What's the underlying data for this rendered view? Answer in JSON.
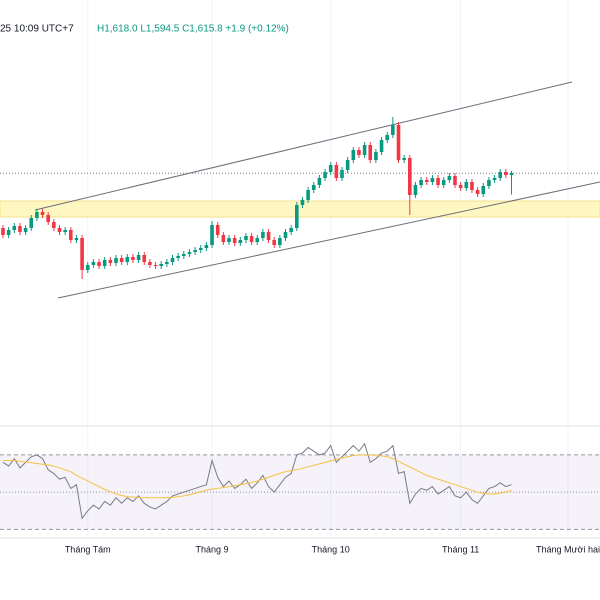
{
  "chart_data": {
    "type": "candlestick",
    "header": {
      "time": "25 10:09 UTC+7",
      "ohlc": "H1,618.0 L1,594.5 C1,615.8 +1.9 (+0.12%)"
    },
    "categories": [
      null,
      null,
      null,
      null,
      null,
      null,
      null,
      null,
      null,
      null,
      null,
      null,
      null,
      null,
      null,
      "Tháng Tám",
      null,
      null,
      null,
      null,
      null,
      null,
      null,
      null,
      null,
      null,
      null,
      null,
      null,
      null,
      null,
      null,
      null,
      null,
      null,
      null,
      null,
      "Tháng 9",
      null,
      null,
      null,
      null,
      null,
      null,
      null,
      null,
      null,
      null,
      null,
      null,
      null,
      null,
      null,
      null,
      null,
      null,
      null,
      null,
      "Tháng 10",
      null,
      null,
      null,
      null,
      null,
      null,
      null,
      null,
      null,
      null,
      null,
      null,
      null,
      null,
      null,
      null,
      null,
      null,
      null,
      null,
      null,
      null,
      "Tháng 11",
      null,
      null,
      null,
      null,
      null,
      null,
      null,
      null,
      null,
      null,
      null,
      null,
      null,
      null,
      null,
      null,
      null,
      null,
      "Tháng Mười hai"
    ],
    "open": [
      1561,
      1554,
      1559,
      1563,
      1557,
      1561,
      1571,
      1577,
      1574,
      1567,
      1561,
      1557,
      1559,
      1549,
      1551,
      1519,
      1524,
      1527,
      1523,
      1529,
      1526,
      1531,
      1527,
      1532,
      1529,
      1534,
      1527,
      1524,
      1523,
      1525,
      1527,
      1531,
      1533,
      1535,
      1537,
      1539,
      1541,
      1544,
      1564,
      1554,
      1547,
      1551,
      1546,
      1549,
      1553,
      1547,
      1551,
      1557,
      1549,
      1544,
      1551,
      1557,
      1561,
      1584,
      1589,
      1599,
      1604,
      1611,
      1617,
      1624,
      1611,
      1619,
      1629,
      1639,
      1634,
      1644,
      1629,
      1637,
      1649,
      1654,
      1664,
      1629,
      1631,
      1594,
      1604,
      1609,
      1607,
      1611,
      1604,
      1609,
      1613,
      1604,
      1601,
      1607,
      1599,
      1595,
      1603,
      1609,
      1611,
      1617,
      1613.9,
      null,
      null,
      null,
      null,
      null,
      null,
      null,
      null,
      null,
      null
    ],
    "high": [
      1564,
      1562,
      1566,
      1566,
      1564,
      1574,
      1580,
      1580,
      1577,
      1570,
      1564,
      1562,
      1562,
      1554,
      1554,
      1527,
      1530,
      1530,
      1532,
      1532,
      1534,
      1534,
      1535,
      1535,
      1537,
      1537,
      1530,
      1527,
      1528,
      1530,
      1534,
      1536,
      1538,
      1540,
      1542,
      1544,
      1547,
      1568,
      1567,
      1557,
      1554,
      1554,
      1552,
      1556,
      1556,
      1554,
      1560,
      1560,
      1552,
      1554,
      1560,
      1564,
      1587,
      1592,
      1602,
      1607,
      1614,
      1620,
      1627,
      1627,
      1622,
      1632,
      1642,
      1642,
      1647,
      1647,
      1640,
      1652,
      1657,
      1672,
      1667,
      1634,
      1634,
      1607,
      1612,
      1612,
      1614,
      1614,
      1612,
      1616,
      1616,
      1607,
      1610,
      1610,
      1602,
      1606,
      1612,
      1614,
      1620,
      1620,
      1618,
      null,
      null,
      null,
      null,
      null,
      null,
      null,
      null,
      null,
      null
    ],
    "low": [
      1551,
      1551,
      1556,
      1554,
      1554,
      1558,
      1568,
      1571,
      1564,
      1558,
      1554,
      1554,
      1546,
      1546,
      1510,
      1516,
      1521,
      1520,
      1520,
      1523,
      1523,
      1524,
      1524,
      1526,
      1526,
      1524,
      1521,
      1520,
      1520,
      1522,
      1524,
      1528,
      1530,
      1532,
      1534,
      1536,
      1538,
      1541,
      1551,
      1544,
      1544,
      1543,
      1543,
      1546,
      1544,
      1544,
      1548,
      1546,
      1541,
      1541,
      1548,
      1554,
      1558,
      1581,
      1586,
      1596,
      1601,
      1608,
      1614,
      1608,
      1608,
      1616,
      1626,
      1631,
      1631,
      1626,
      1626,
      1634,
      1646,
      1651,
      1626,
      1626,
      1574,
      1591,
      1601,
      1604,
      1604,
      1601,
      1601,
      1606,
      1601,
      1598,
      1598,
      1596,
      1592,
      1592,
      1600,
      1606,
      1608,
      1611,
      1594.5,
      null,
      null,
      null,
      null,
      null,
      null,
      null,
      null,
      null,
      null
    ],
    "close": [
      1554,
      1559,
      1563,
      1557,
      1561,
      1571,
      1577,
      1574,
      1567,
      1561,
      1557,
      1559,
      1549,
      1551,
      1519,
      1524,
      1527,
      1523,
      1529,
      1526,
      1531,
      1527,
      1532,
      1529,
      1534,
      1527,
      1524,
      1523,
      1525,
      1527,
      1531,
      1533,
      1535,
      1537,
      1539,
      1541,
      1544,
      1564,
      1554,
      1547,
      1551,
      1546,
      1549,
      1553,
      1547,
      1551,
      1557,
      1549,
      1544,
      1551,
      1557,
      1561,
      1584,
      1589,
      1599,
      1604,
      1611,
      1617,
      1624,
      1611,
      1619,
      1629,
      1639,
      1634,
      1644,
      1629,
      1637,
      1649,
      1654,
      1664,
      1629,
      1631,
      1594,
      1604,
      1609,
      1607,
      1611,
      1604,
      1609,
      1613,
      1604,
      1601,
      1607,
      1599,
      1595,
      1603,
      1609,
      1611,
      1617,
      1613.9,
      1615.8,
      null,
      null,
      null,
      null,
      null,
      null,
      null,
      null,
      null,
      null
    ],
    "up_color": "#089981",
    "down_color": "#f23645",
    "ylim": [
      1369,
      1789
    ],
    "rsi": {
      "type": "line",
      "ylim": [
        27,
        78
      ],
      "levels": [
        70,
        50,
        30
      ],
      "series": [
        {
          "color": "#787b86",
          "values": [
            66,
            64,
            68,
            63,
            66,
            69,
            70,
            68,
            62,
            60,
            57,
            58,
            52,
            54,
            36,
            40,
            43,
            41,
            45,
            43,
            47,
            44,
            47,
            45,
            48,
            44,
            42,
            41,
            43,
            45,
            48,
            49,
            50,
            51,
            52,
            53,
            54,
            67,
            58,
            53,
            56,
            52,
            54,
            57,
            52,
            55,
            59,
            53,
            50,
            54,
            58,
            60,
            70,
            71,
            74,
            72,
            70,
            71,
            75,
            66,
            69,
            72,
            75,
            72,
            76,
            66,
            68,
            71,
            72,
            75,
            60,
            61,
            44,
            49,
            52,
            51,
            53,
            49,
            51,
            53,
            48,
            47,
            50,
            46,
            44,
            48,
            52,
            53,
            55,
            53,
            54,
            null,
            null,
            null,
            null,
            null,
            null,
            null,
            null,
            null,
            null
          ]
        },
        {
          "color": "#f5c242",
          "values": [
            67,
            67,
            67,
            66.6,
            66.2,
            65.8,
            65.4,
            65,
            64.6,
            64,
            63,
            62,
            61,
            59,
            57.5,
            56,
            54.5,
            53,
            51.5,
            50.2,
            49,
            48.2,
            47.6,
            47.4,
            47.2,
            47,
            47,
            47,
            47,
            47,
            47.2,
            47.5,
            48,
            48.6,
            49.4,
            50.2,
            51,
            51.6,
            52,
            52.5,
            53,
            53.5,
            54,
            54.6,
            55.2,
            56,
            57,
            58,
            59,
            60,
            61,
            61.6,
            62,
            62.8,
            63.6,
            64.4,
            65.2,
            66,
            66.8,
            67.6,
            68.4,
            69,
            69.6,
            70,
            70,
            70,
            69.8,
            69.5,
            69,
            68,
            66.5,
            65,
            63.5,
            62,
            60.5,
            59,
            58,
            57,
            56,
            55,
            54,
            53,
            52,
            51,
            50,
            49.5,
            49,
            49,
            49.5,
            50,
            51,
            null,
            null,
            null,
            null,
            null,
            null,
            null,
            null,
            null,
            null
          ]
        }
      ]
    }
  }
}
